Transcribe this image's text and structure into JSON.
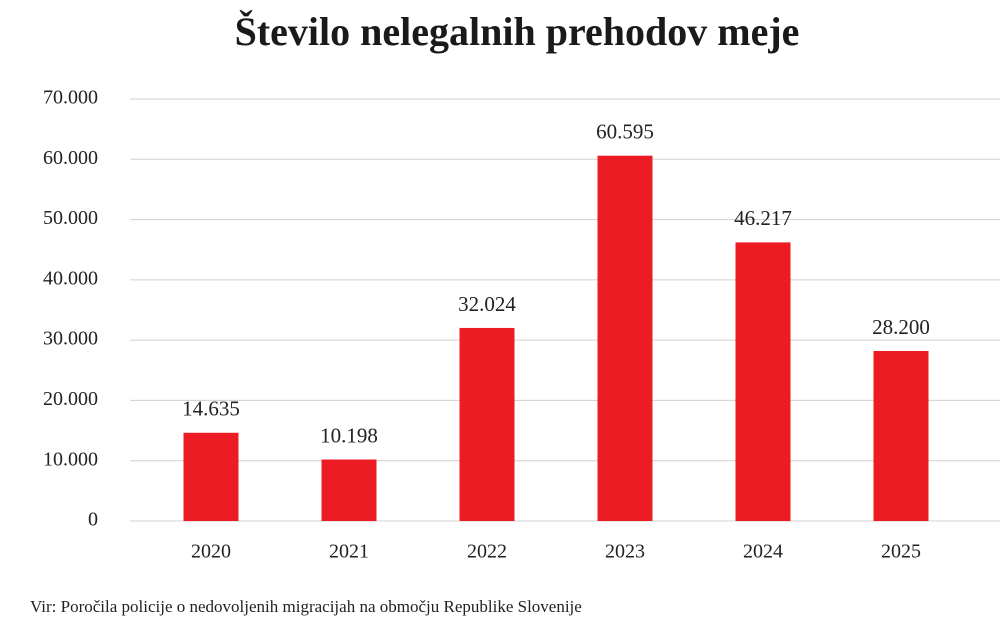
{
  "chart_data": {
    "type": "bar",
    "title": "Število nelegalnih prehodov meje",
    "categories": [
      "2020",
      "2021",
      "2022",
      "2023",
      "2024",
      "2025"
    ],
    "values": [
      14635,
      10198,
      32024,
      60595,
      46217,
      28200
    ],
    "value_labels": [
      "14.635",
      "10.198",
      "32.024",
      "60.595",
      "46.217",
      "28.200"
    ],
    "color": "#ed1c24",
    "ylim": [
      0,
      70000
    ],
    "yticks": [
      0,
      {
        "value": 10000,
        "label": "10.000"
      },
      {
        "value": 20000,
        "label": "20.000"
      },
      {
        "value": 30000,
        "label": "30.000"
      },
      {
        "value": 40000,
        "label": "40.000"
      },
      {
        "value": 50000,
        "label": "50.000"
      },
      {
        "value": 60000,
        "label": "60.000"
      },
      {
        "value": 70000,
        "label": "70.000"
      }
    ],
    "grid": true,
    "source": "Vir: Poročila policije o nedovoljenih migracijah na območju Republike Slovenije"
  }
}
